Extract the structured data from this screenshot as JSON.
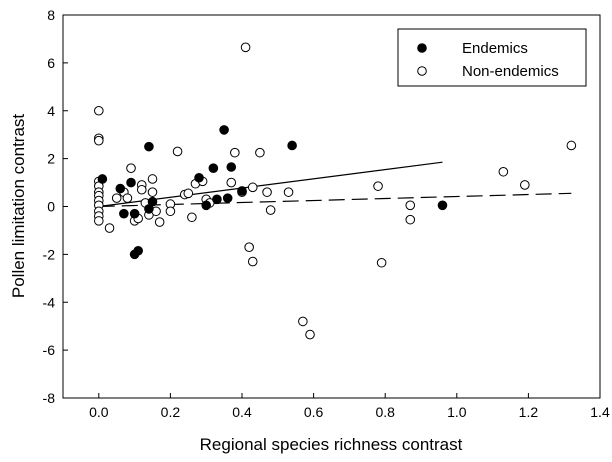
{
  "chart_data": {
    "type": "scatter",
    "xlabel": "Regional species richness contrast",
    "ylabel": "Pollen limitation contrast",
    "xlim": [
      -0.1,
      1.4
    ],
    "ylim": [
      -8,
      8
    ],
    "x_ticks": [
      "0.0",
      "0.2",
      "0.4",
      "0.6",
      "0.8",
      "1.0",
      "1.2",
      "1.4"
    ],
    "y_ticks": [
      "-8",
      "-6",
      "-4",
      "-2",
      "0",
      "2",
      "4",
      "6",
      "8"
    ],
    "legend_position": "top-right",
    "series": [
      {
        "name": "Endemics",
        "marker": "filled-circle",
        "color": "#000000",
        "points": [
          [
            0.01,
            1.15
          ],
          [
            0.07,
            -0.3
          ],
          [
            0.06,
            0.75
          ],
          [
            0.09,
            1.0
          ],
          [
            0.1,
            -0.3
          ],
          [
            0.1,
            -2.0
          ],
          [
            0.11,
            -1.85
          ],
          [
            0.14,
            2.5
          ],
          [
            0.14,
            -0.1
          ],
          [
            0.15,
            0.2
          ],
          [
            0.28,
            1.2
          ],
          [
            0.3,
            0.05
          ],
          [
            0.32,
            1.6
          ],
          [
            0.33,
            0.3
          ],
          [
            0.35,
            3.2
          ],
          [
            0.36,
            0.35
          ],
          [
            0.37,
            1.65
          ],
          [
            0.4,
            0.65
          ],
          [
            0.54,
            2.55
          ],
          [
            0.96,
            0.05
          ]
        ],
        "trendline": {
          "style": "solid",
          "x": [
            0.0,
            0.96
          ],
          "y": [
            0.0,
            1.85
          ]
        }
      },
      {
        "name": "Non-endemics",
        "marker": "open-circle",
        "color": "#000000",
        "points": [
          [
            0.0,
            4.0
          ],
          [
            0.0,
            2.85
          ],
          [
            0.0,
            2.75
          ],
          [
            0.0,
            1.05
          ],
          [
            0.0,
            0.85
          ],
          [
            0.0,
            0.6
          ],
          [
            0.0,
            0.45
          ],
          [
            0.0,
            0.25
          ],
          [
            0.0,
            0.05
          ],
          [
            0.0,
            -0.2
          ],
          [
            0.0,
            -0.4
          ],
          [
            0.0,
            -0.6
          ],
          [
            0.03,
            -0.9
          ],
          [
            0.05,
            0.35
          ],
          [
            0.07,
            0.6
          ],
          [
            0.08,
            0.35
          ],
          [
            0.09,
            1.6
          ],
          [
            0.1,
            -0.6
          ],
          [
            0.11,
            -0.5
          ],
          [
            0.12,
            0.9
          ],
          [
            0.12,
            0.7
          ],
          [
            0.13,
            0.15
          ],
          [
            0.14,
            -0.35
          ],
          [
            0.15,
            0.6
          ],
          [
            0.15,
            1.15
          ],
          [
            0.16,
            -0.2
          ],
          [
            0.17,
            -0.65
          ],
          [
            0.2,
            0.1
          ],
          [
            0.2,
            -0.2
          ],
          [
            0.22,
            2.3
          ],
          [
            0.24,
            0.5
          ],
          [
            0.25,
            0.55
          ],
          [
            0.26,
            -0.45
          ],
          [
            0.27,
            0.95
          ],
          [
            0.29,
            1.05
          ],
          [
            0.3,
            0.3
          ],
          [
            0.31,
            0.15
          ],
          [
            0.37,
            1.0
          ],
          [
            0.38,
            2.25
          ],
          [
            0.4,
            0.6
          ],
          [
            0.41,
            6.65
          ],
          [
            0.42,
            -1.7
          ],
          [
            0.43,
            -2.3
          ],
          [
            0.43,
            0.8
          ],
          [
            0.45,
            2.25
          ],
          [
            0.47,
            0.6
          ],
          [
            0.48,
            -0.15
          ],
          [
            0.53,
            0.6
          ],
          [
            0.57,
            -4.8
          ],
          [
            0.59,
            -5.35
          ],
          [
            0.78,
            0.85
          ],
          [
            0.79,
            -2.35
          ],
          [
            0.87,
            0.05
          ],
          [
            0.87,
            -0.55
          ],
          [
            1.13,
            1.45
          ],
          [
            1.19,
            0.9
          ],
          [
            1.32,
            2.55
          ]
        ],
        "trendline": {
          "style": "dashed",
          "x": [
            0.0,
            1.32
          ],
          "y": [
            0.0,
            0.55
          ]
        }
      }
    ]
  }
}
